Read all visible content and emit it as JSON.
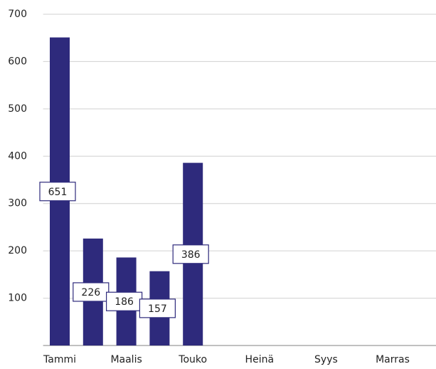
{
  "chart_data": {
    "type": "bar",
    "categories": [
      "Tammi",
      null,
      "Maalis",
      null,
      "Touko",
      null,
      "Heinä",
      null,
      "Syys",
      null,
      "Marras",
      null
    ],
    "values": [
      651,
      226,
      186,
      157,
      386,
      null,
      null,
      null,
      null,
      null,
      null,
      null
    ],
    "color": "#2e2a7c",
    "ylim": [
      0,
      700
    ],
    "yticks": [
      100,
      200,
      300,
      400,
      500,
      600,
      700
    ],
    "grid": true,
    "data_labels": true
  }
}
